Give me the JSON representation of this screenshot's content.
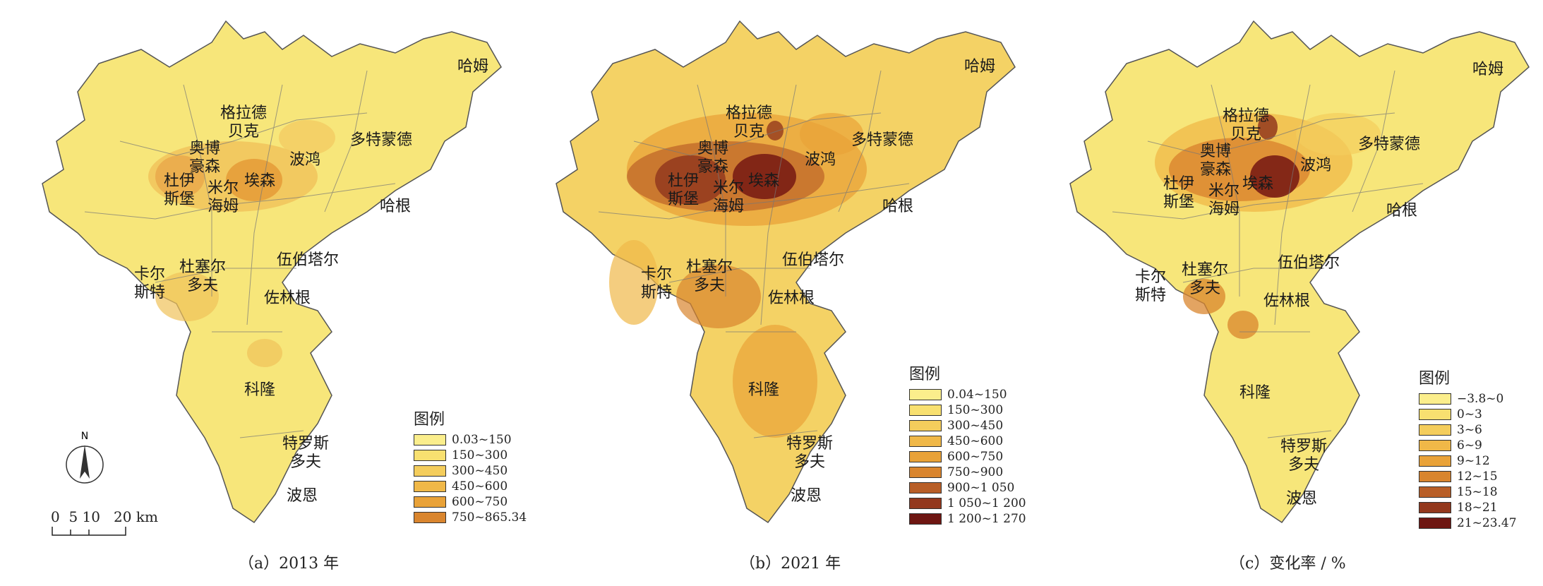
{
  "colors": {
    "outline": "#555555",
    "base": "#f7e67a"
  },
  "panels": [
    {
      "caption": "（a）2013 年",
      "legend": {
        "title": "图例",
        "items": [
          {
            "label": "0.03~150",
            "color": "#fbee8c"
          },
          {
            "label": "150~300",
            "color": "#f8e070"
          },
          {
            "label": "300~450",
            "color": "#f4cd5c"
          },
          {
            "label": "450~600",
            "color": "#f0b848"
          },
          {
            "label": "600~750",
            "color": "#e9a238"
          },
          {
            "label": "750~865.34",
            "color": "#d9852e"
          }
        ]
      },
      "cities": [
        "哈姆",
        "格拉德\n贝克",
        "奥博\n豪森",
        "多特蒙德",
        "杜伊\n斯堡",
        "米尔\n海姆",
        "埃森",
        "波鸿",
        "哈根",
        "伍伯塔尔",
        "卡尔\n斯特",
        "杜塞尔\n多夫",
        "佐林根",
        "科隆",
        "特罗斯\n多夫",
        "波恩"
      ]
    },
    {
      "caption": "（b）2021 年",
      "legend": {
        "title": "图例",
        "items": [
          {
            "label": "0.04~150",
            "color": "#fbee8c"
          },
          {
            "label": "150~300",
            "color": "#f8e070"
          },
          {
            "label": "300~450",
            "color": "#f4cd5c"
          },
          {
            "label": "450~600",
            "color": "#f0b848"
          },
          {
            "label": "600~750",
            "color": "#e9a238"
          },
          {
            "label": "750~900",
            "color": "#d9852e"
          },
          {
            "label": "900~1 050",
            "color": "#b85e27"
          },
          {
            "label": "1 050~1 200",
            "color": "#93381d"
          },
          {
            "label": "1 200~1 270",
            "color": "#6e1612"
          }
        ]
      },
      "cities": [
        "哈姆",
        "格拉德\n贝克",
        "奥博\n豪森",
        "多特蒙德",
        "杜伊\n斯堡",
        "米尔\n海姆",
        "埃森",
        "波鸿",
        "哈根",
        "伍伯塔尔",
        "卡尔\n斯特",
        "杜塞尔\n多夫",
        "佐林根",
        "科隆",
        "特罗斯\n多夫",
        "波恩"
      ]
    },
    {
      "caption": "（c）变化率 / %",
      "legend": {
        "title": "图例",
        "items": [
          {
            "label": "−3.8~0",
            "color": "#fbee8c"
          },
          {
            "label": "0~3",
            "color": "#f8e070"
          },
          {
            "label": "3~6",
            "color": "#f4cd5c"
          },
          {
            "label": "6~9",
            "color": "#f0b848"
          },
          {
            "label": "9~12",
            "color": "#e9a238"
          },
          {
            "label": "12~15",
            "color": "#d9852e"
          },
          {
            "label": "15~18",
            "color": "#b85e27"
          },
          {
            "label": "18~21",
            "color": "#93381d"
          },
          {
            "label": "21~23.47",
            "color": "#6e1612"
          }
        ]
      },
      "cities": [
        "哈姆",
        "格拉德\n贝克",
        "奥博\n豪森",
        "多特蒙德",
        "杜伊\n斯堡",
        "米尔\n海姆",
        "埃森",
        "波鸿",
        "哈根",
        "伍伯塔尔",
        "卡尔\n斯特",
        "杜塞尔\n多夫",
        "佐林根",
        "科隆",
        "特罗斯\n多夫",
        "波恩"
      ]
    }
  ],
  "north_arrow": {
    "letter": "N"
  },
  "scale_bar": {
    "label": "0  5 10   20 km"
  }
}
